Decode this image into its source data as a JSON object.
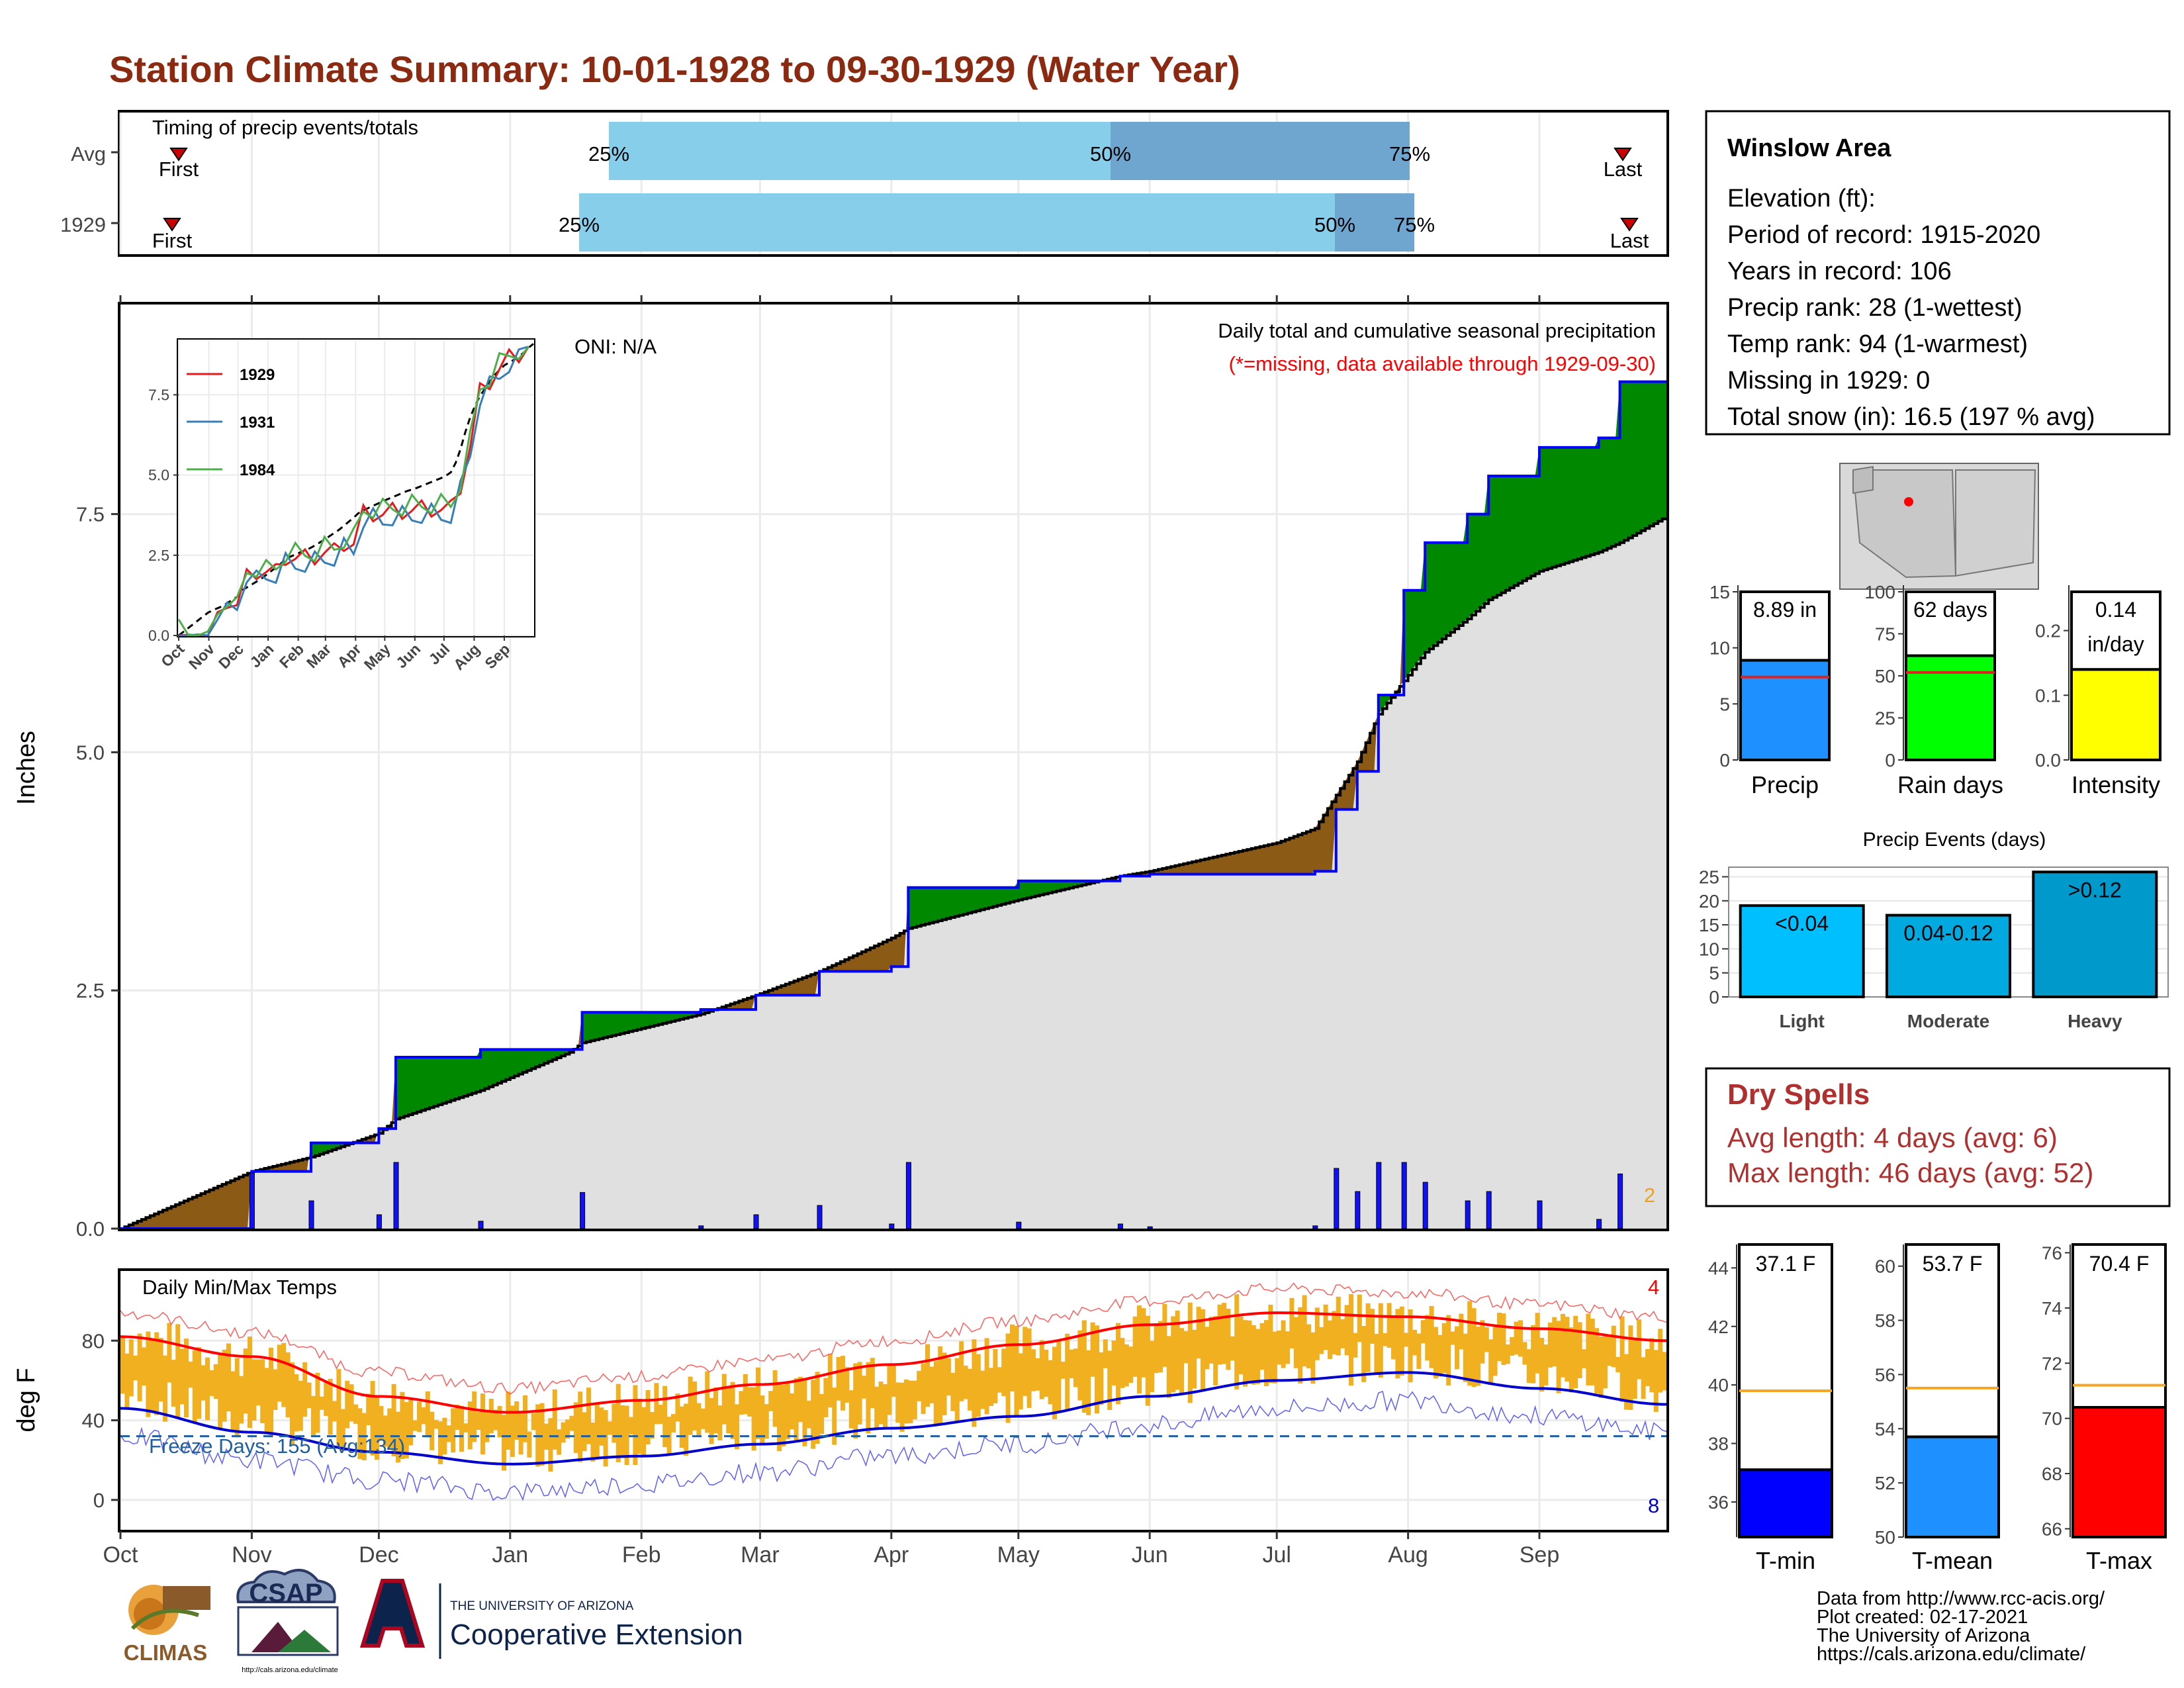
{
  "title": "Station Climate Summary: 10-01-1928 to 09-30-1929 (Water Year)",
  "timing": {
    "title": "Timing of precip events/totals",
    "rows": [
      {
        "label": "Avg",
        "first": "First",
        "last": "Last",
        "p25": "25%",
        "p50": "50%",
        "p75": "75%"
      },
      {
        "label": "1929",
        "first": "First",
        "last": "Last",
        "p25": "25%",
        "p50": "50%",
        "p75": "75%"
      }
    ]
  },
  "station": {
    "name": "Winslow Area",
    "lines": [
      "Elevation (ft):",
      "Period of record: 1915-2020",
      "Years in record: 106",
      "Precip rank: 28 (1-wettest)",
      "Temp rank: 94 (1-warmest)",
      "Missing in 1929: 0",
      "Total snow (in): 16.5 (197 % avg)"
    ]
  },
  "main_panel": {
    "ylabel": "Inches",
    "note1": "Daily total and cumulative seasonal precipitation",
    "note2": "(*=missing, data available through 1929-09-30)",
    "oni": "ONI: N/A",
    "corner_count": "2",
    "yticks": [
      "0.0",
      "2.5",
      "5.0",
      "7.5"
    ]
  },
  "inset": {
    "legend": [
      "1929",
      "1931",
      "1984"
    ],
    "yticks": [
      "0.0",
      "2.5",
      "5.0",
      "7.5"
    ],
    "months": [
      "Oct",
      "Nov",
      "Dec",
      "Jan",
      "Feb",
      "Mar",
      "Apr",
      "May",
      "Jun",
      "Jul",
      "Aug",
      "Sep"
    ]
  },
  "temp_panel": {
    "title": "Daily Min/Max Temps",
    "ylabel": "deg F",
    "freeze": "Freeze Days: 155 (Avg:134)",
    "count_top": "4",
    "count_bottom": "8",
    "yticks": [
      "0",
      "40",
      "80"
    ]
  },
  "months": [
    "Oct",
    "Nov",
    "Dec",
    "Jan",
    "Feb",
    "Mar",
    "Apr",
    "May",
    "Jun",
    "Jul",
    "Aug",
    "Sep"
  ],
  "bars": [
    {
      "value": "8.89 in",
      "xlabel": "Precip"
    },
    {
      "value": "62 days",
      "xlabel": "Rain days"
    },
    {
      "value": "0.14\nin/day",
      "xlabel": "Intensity"
    }
  ],
  "events": {
    "title": "Precip Events (days)",
    "bars": [
      {
        "label": "<0.04",
        "xlabel": "Light"
      },
      {
        "label": "0.04-0.12",
        "xlabel": "Moderate"
      },
      {
        "label": ">0.12",
        "xlabel": "Heavy"
      }
    ],
    "yticks": [
      "0",
      "5",
      "10",
      "15",
      "20",
      "25"
    ]
  },
  "dry_spells": {
    "title": "Dry Spells",
    "line1": "Avg length: 4 days (avg: 6)",
    "line2": "Max length: 46 days (avg: 52)"
  },
  "temps": [
    {
      "value": "37.1 F",
      "xlabel": "T-min"
    },
    {
      "value": "53.7 F",
      "xlabel": "T-mean"
    },
    {
      "value": "70.4 F",
      "xlabel": "T-max"
    }
  ],
  "footer": {
    "lines": [
      "Data from http://www.rcc-acis.org/",
      "Plot created: 02-17-2021",
      "The University of Arizona",
      "https://cals.arizona.edu/climate/"
    ],
    "logo_climas": "CLIMAS",
    "logo_csap": "CSAP",
    "logo_csap_url": "http://cals.arizona.edu/climate",
    "ua_line1": "THE UNIVERSITY OF ARIZONA",
    "ua_line2": "Cooperative Extension"
  },
  "colors": {
    "title": "#8b2a10",
    "green": "#008800",
    "brown": "#8b5a14",
    "gray_fill": "#e0e0e0",
    "obs_line": "#0000ff",
    "avg_line": "#000000",
    "max_line": "#ff0000",
    "min_line": "#0000cc",
    "temp_bar": "#f0b020",
    "precip_bar": "#1e90ff",
    "rain_bar": "#00ff00",
    "int_bar": "#ffff00",
    "light_bar": "#00bfff",
    "mod_bar": "#00aae0",
    "heavy_bar": "#0099cc",
    "tmin_bar": "#0000ff",
    "tmean_bar": "#1e90ff",
    "tmax_bar": "#ff0000",
    "dry_text": "#b03030"
  },
  "chart_data": [
    {
      "type": "area",
      "name": "cumulative precipitation",
      "x": [
        "10-01",
        "11-01",
        "11-15",
        "12-01",
        "12-05",
        "12-25",
        "01-15",
        "01-18",
        "02-15",
        "02-28",
        "03-15",
        "04-01",
        "04-05",
        "05-01",
        "05-25",
        "06-01",
        "07-01",
        "07-10",
        "07-15",
        "07-20",
        "07-25",
        "07-31",
        "08-05",
        "08-15",
        "08-20",
        "09-01",
        "09-15",
        "09-20",
        "09-30"
      ],
      "series": [
        {
          "name": "1929",
          "values": [
            0.0,
            0.6,
            0.9,
            1.05,
            1.8,
            1.88,
            1.88,
            2.27,
            2.3,
            2.45,
            2.7,
            2.75,
            3.58,
            3.65,
            3.7,
            3.72,
            3.72,
            3.75,
            4.4,
            4.8,
            5.6,
            6.7,
            7.2,
            7.5,
            7.9,
            8.2,
            8.3,
            8.89,
            8.89
          ]
        },
        {
          "name": "Avg",
          "values": [
            0.0,
            0.6,
            0.75,
            1.0,
            1.15,
            1.45,
            1.85,
            1.95,
            2.25,
            2.45,
            2.7,
            3.05,
            3.15,
            3.45,
            3.7,
            3.75,
            4.05,
            4.2,
            4.55,
            4.9,
            5.4,
            5.75,
            6.05,
            6.4,
            6.6,
            6.9,
            7.1,
            7.2,
            7.45
          ]
        }
      ],
      "ylim": [
        0,
        9.7
      ],
      "ylabel": "Inches"
    },
    {
      "type": "line",
      "name": "Daily Min/Max Temps",
      "x": [
        "Oct",
        "Nov",
        "Dec",
        "Jan",
        "Feb",
        "Mar",
        "Apr",
        "May",
        "Jun",
        "Jul",
        "Aug",
        "Sep",
        "Oct"
      ],
      "series": [
        {
          "name": "Avg max",
          "values": [
            82,
            72,
            52,
            44,
            50,
            58,
            68,
            78,
            88,
            94,
            92,
            86,
            80
          ]
        },
        {
          "name": "Avg min",
          "values": [
            46,
            34,
            24,
            18,
            22,
            28,
            36,
            42,
            52,
            60,
            64,
            56,
            48
          ]
        }
      ],
      "ylim": [
        -15,
        115
      ],
      "ylabel": "deg F"
    },
    {
      "type": "bar",
      "categories": [
        "Precip",
        "Rain days",
        "Intensity"
      ],
      "values": [
        8.89,
        62,
        0.14
      ],
      "averages": [
        7.4,
        52,
        0.14
      ],
      "ylims": [
        [
          0,
          15
        ],
        [
          0,
          100
        ],
        [
          0,
          0.26
        ]
      ]
    },
    {
      "type": "bar",
      "name": "Precip Events (days)",
      "categories": [
        "Light",
        "Moderate",
        "Heavy"
      ],
      "values": [
        19,
        17,
        26
      ],
      "ylim": [
        0,
        27
      ]
    },
    {
      "type": "bar",
      "categories": [
        "T-min",
        "T-mean",
        "T-max"
      ],
      "values": [
        37.1,
        53.7,
        70.4
      ],
      "averages": [
        39.8,
        55.5,
        71.2
      ],
      "ylims": [
        [
          34.8,
          44.8
        ],
        [
          50,
          60.8
        ],
        [
          65.7,
          76.3
        ]
      ]
    }
  ]
}
